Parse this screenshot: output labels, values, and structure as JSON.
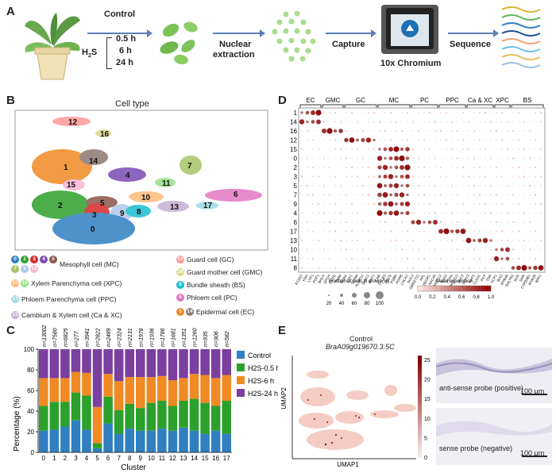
{
  "panels": {
    "a": "A",
    "b": "B",
    "c": "C",
    "d": "D",
    "e": "E"
  },
  "panelA": {
    "control_label": "Control",
    "h2s_label": "H",
    "h2s_sub": "2",
    "h2s_tail": "S",
    "times": [
      "0.5 h",
      "6 h",
      "24 h"
    ],
    "nuclear_extraction_1": "Nuclear",
    "nuclear_extraction_2": "extraction",
    "capture": "Capture",
    "chromium": "10x Chromium",
    "sequence": "Sequence"
  },
  "panelB": {
    "title": "Cell type",
    "cluster_labels": [
      "0",
      "1",
      "2",
      "3",
      "4",
      "5",
      "6",
      "7",
      "8",
      "9",
      "10",
      "11",
      "12",
      "13",
      "14",
      "15",
      "16",
      "17"
    ],
    "legend": [
      {
        "text": "Mesophyll cell (MC)",
        "clusters": [
          "0",
          "2",
          "3",
          "4",
          "5",
          "7",
          "9",
          "15"
        ]
      },
      {
        "text": "Xylem Parenchyma cell (XPC)",
        "clusters": [
          "10",
          "11"
        ]
      },
      {
        "text": "Phloem Parenchyma cell (PPC)",
        "clusters": [
          "17"
        ]
      },
      {
        "text": "Cambium & Xylem cell (Ca & XC)",
        "clusters": [
          "13"
        ]
      },
      {
        "text": "Guard cell (GC)",
        "clusters": [
          "12"
        ]
      },
      {
        "text": "Guard mother cell (GMC)",
        "clusters": [
          "16"
        ]
      },
      {
        "text": "Bundle sheath (BS)",
        "clusters": [
          "8"
        ]
      },
      {
        "text": "Phloem cell (PC)",
        "clusters": [
          "6"
        ]
      },
      {
        "text": "Epidermal cell (EC)",
        "clusters": [
          "1",
          "14"
        ]
      }
    ],
    "colors": {
      "0": "#2f7fc1",
      "1": "#f08a24",
      "2": "#2ca02c",
      "3": "#d62728",
      "4": "#7b4bb3",
      "5": "#8c564b",
      "6": "#e377c2",
      "7": "#a9c267",
      "8": "#17becf",
      "9": "#aec7e8",
      "10": "#ffbb78",
      "11": "#98df8a",
      "12": "#ff9896",
      "13": "#c5b0d5",
      "14": "#8a7a72",
      "15": "#f7b6d2",
      "16": "#dbdb8d",
      "17": "#9edae5"
    }
  },
  "panelD": {
    "groups": [
      "EC",
      "GMC",
      "GC",
      "MC",
      "PC",
      "PPC",
      "Ca & XC",
      "XPC",
      "BS"
    ],
    "rows": [
      "1",
      "14",
      "16",
      "12",
      "15",
      "0",
      "2",
      "3",
      "5",
      "7",
      "9",
      "4",
      "6",
      "17",
      "13",
      "10",
      "11",
      "8"
    ],
    "genes": [
      "KCS10",
      "FDH",
      "LTP1",
      "PDF1",
      "BHLH",
      "SPCH",
      "MUTE",
      "TMM",
      "FAMA",
      "EPF1",
      "SCRM",
      "ALMT12",
      "SLAC1",
      "KAT1",
      "CAB",
      "LHCB3",
      "RBCS",
      "PSBR",
      "PORB",
      "LHCA1",
      "SUC2",
      "SWEET11",
      "APL",
      "SEOR1",
      "NAC45",
      "SWEET12",
      "AHA3",
      "PP2A",
      "SWEET13",
      "SUC3",
      "STP13",
      "AAP2",
      "CLE41",
      "PXY",
      "TDR",
      "XCP1",
      "IRX3",
      "MYB46",
      "SULTR2",
      "SCR",
      "SHR",
      "CYP83B1",
      "MYB28",
      "BPF1"
    ],
    "size_legend_title": "Fraction of cells in group (%)",
    "size_legend_values": [
      "20",
      "40",
      "60",
      "80",
      "100"
    ],
    "color_legend_title": "Mean expression",
    "color_ticks": [
      "0.0",
      "0.2",
      "0.4",
      "0.6",
      "0.8",
      "1.0"
    ]
  },
  "chart_data": {
    "type": "bar",
    "categories": [
      "0",
      "1",
      "2",
      "3",
      "4",
      "5",
      "6",
      "7",
      "8",
      "9",
      "10",
      "11",
      "12",
      "13",
      "14",
      "15",
      "16",
      "17"
    ],
    "n_labels": [
      "n=13002",
      "n=7580",
      "n=6825",
      "n=277",
      "n=3941",
      "n=2822",
      "n=2489",
      "n=2324",
      "n=2131",
      "n=1978",
      "n=1936",
      "n=1786",
      "n=1681",
      "n=1351",
      "n=1260",
      "n=935",
      "n=906",
      "n=582"
    ],
    "series": [
      {
        "name": "Control",
        "color": "#2f7fc1",
        "values": [
          21,
          22,
          25,
          31,
          22,
          4,
          28,
          18,
          23,
          21,
          21,
          23,
          21,
          24,
          21,
          18,
          21,
          18
        ]
      },
      {
        "name": "H2S-0.5 h",
        "color": "#2ca02c",
        "values": [
          24,
          27,
          24,
          27,
          33,
          5,
          26,
          23,
          24,
          22,
          27,
          27,
          24,
          26,
          31,
          30,
          24,
          32
        ]
      },
      {
        "name": "H2S-6 h",
        "color": "#f08a24",
        "values": [
          27,
          23,
          23,
          20,
          22,
          35,
          22,
          28,
          26,
          30,
          25,
          24,
          25,
          22,
          24,
          27,
          27,
          25
        ]
      },
      {
        "name": "H2S-24 h",
        "color": "#7b3fa0",
        "values": [
          28,
          28,
          28,
          22,
          23,
          56,
          24,
          31,
          27,
          27,
          27,
          26,
          30,
          28,
          24,
          25,
          28,
          25
        ]
      }
    ],
    "legend": [
      "Control",
      "H2S-0.5 h",
      "H2S-6 h",
      "H2S-24 h"
    ],
    "ylabel": "Percentage (%)",
    "xlabel": "Cluster",
    "yticks": [
      "0",
      "20",
      "40",
      "60",
      "80",
      "100"
    ],
    "ylim": [
      0,
      100
    ]
  },
  "panelE": {
    "title_1": "Control",
    "title_2": "BraA09g019670.3.5C",
    "ylabel": "UMAP2",
    "xlabel": "UMAP1",
    "cbar_ticks": [
      "0",
      "5",
      "10",
      "15",
      "20",
      "25"
    ],
    "top_caption": "anti-sense probe (positive)",
    "bottom_caption": "sense probe (negative)",
    "scale_top": "100 μm",
    "scale_bottom": "100 μm"
  }
}
